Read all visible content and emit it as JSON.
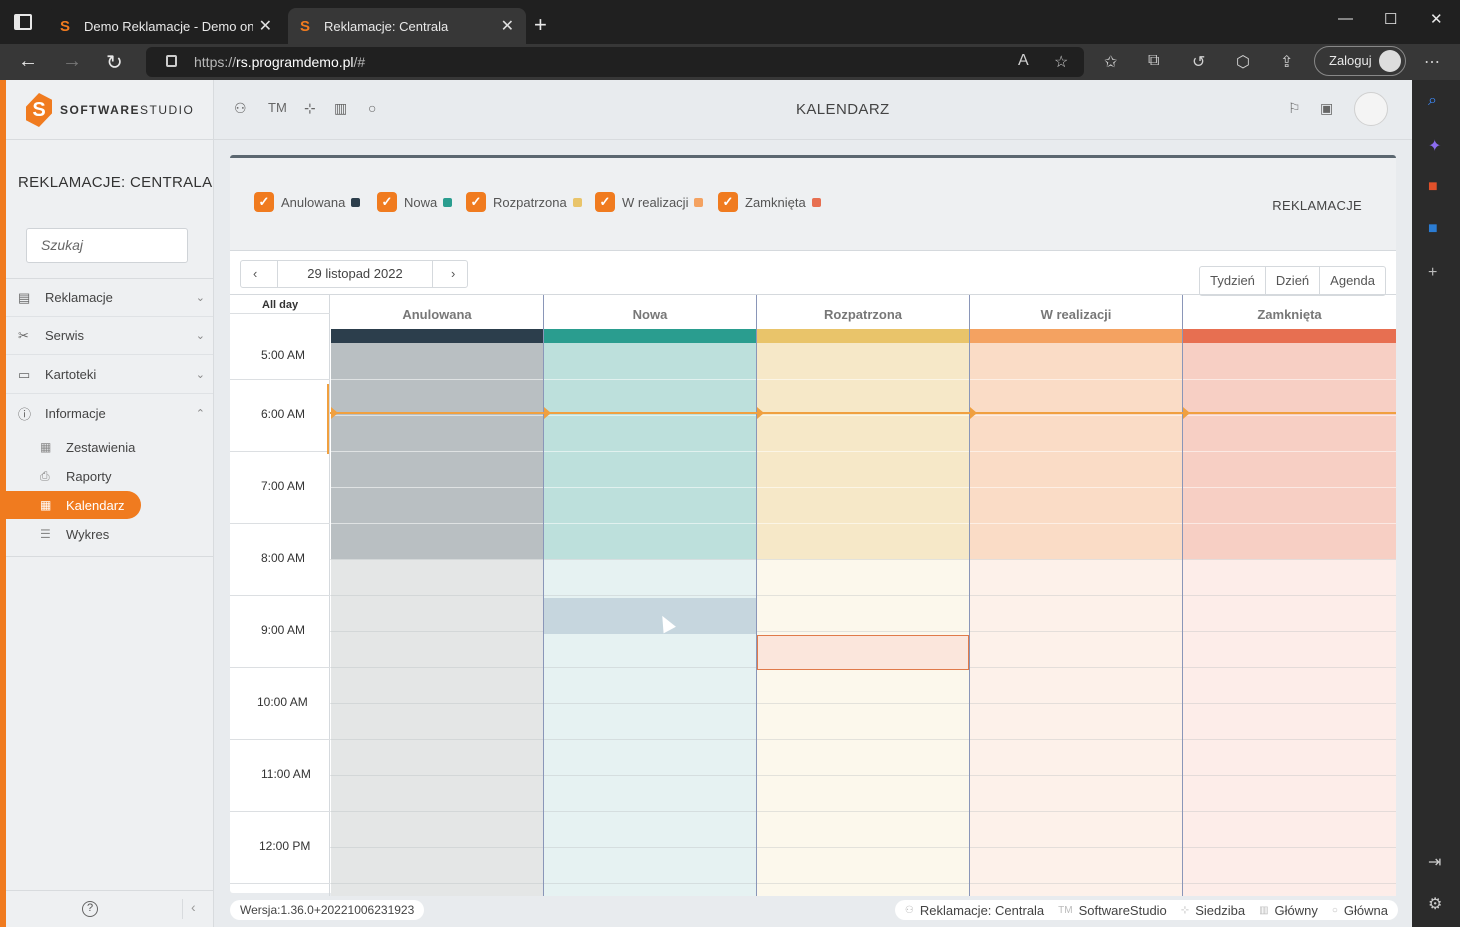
{
  "browser": {
    "tabs": [
      {
        "title": "Demo Reklamacje - Demo on lin",
        "favicon": "S"
      },
      {
        "title": "Reklamacje: Centrala",
        "favicon": "S"
      }
    ],
    "url_scheme": "https://",
    "url_host": "rs.programdemo.pl",
    "url_path": "/#",
    "login_label": "Zaloguj"
  },
  "logo": {
    "bold": "SOFTWARE",
    "light": "STUDIO",
    "mark": "S"
  },
  "sidebar": {
    "title": "REKLAMACJE: CENTRALA",
    "search_placeholder": "Szukaj",
    "items": [
      {
        "label": "Reklamacje",
        "icon": "document-icon"
      },
      {
        "label": "Serwis",
        "icon": "tools-icon"
      },
      {
        "label": "Kartoteki",
        "icon": "folder-icon"
      },
      {
        "label": "Informacje",
        "icon": "info-icon"
      }
    ],
    "subitems": [
      {
        "label": "Zestawienia",
        "icon": "table-icon"
      },
      {
        "label": "Raporty",
        "icon": "printer-icon"
      },
      {
        "label": "Kalendarz",
        "icon": "calendar-icon"
      },
      {
        "label": "Wykres",
        "icon": "chart-icon"
      }
    ]
  },
  "header": {
    "title": "KALENDARZ",
    "tm_label": "TM"
  },
  "filters": [
    {
      "label": "Anulowana",
      "color": "#2c3e4c"
    },
    {
      "label": "Nowa",
      "color": "#2a9d8f"
    },
    {
      "label": "Rozpatrzona",
      "color": "#e9c46a"
    },
    {
      "label": "W realizacji",
      "color": "#f4a261"
    },
    {
      "label": "Zamknięta",
      "color": "#e76f51"
    }
  ],
  "reklamacje_link": "REKLAMACJE",
  "calendar": {
    "date_label": "29 listopad 2022",
    "views": [
      "Tydzień",
      "Dzień",
      "Agenda"
    ],
    "allday_label": "All day",
    "times": [
      "5:00 AM",
      "6:00 AM",
      "7:00 AM",
      "8:00 AM",
      "9:00 AM",
      "10:00 AM",
      "11:00 AM",
      "12:00 PM"
    ],
    "columns": [
      "Anulowana",
      "Nowa",
      "Rozpatrzona",
      "W realizacji",
      "Zamknięta"
    ]
  },
  "footer": {
    "version": "Wersja:1.36.0+20221006231923",
    "info": [
      "Reklamacje: Centrala",
      "SoftwareStudio",
      "Siedziba",
      "Główny",
      "Główna"
    ],
    "info_prefix": "TM"
  }
}
